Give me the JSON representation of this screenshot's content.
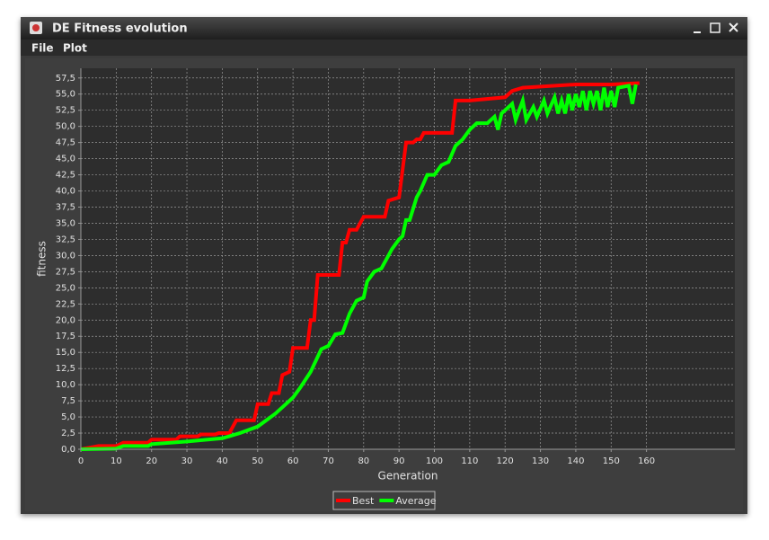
{
  "window": {
    "title": "DE Fitness evolution",
    "menu": [
      "File",
      "Plot"
    ]
  },
  "chart_data": {
    "type": "line",
    "x_label": "Generation",
    "y_label": "fitness",
    "xlim": [
      0,
      185
    ],
    "xticks": [
      0,
      10,
      20,
      30,
      40,
      50,
      60,
      70,
      80,
      90,
      100,
      110,
      120,
      130,
      140,
      150,
      160
    ],
    "ylim": [
      0,
      59
    ],
    "yticks": [
      {
        "value": 0,
        "label": "0,0"
      },
      {
        "value": 2.5,
        "label": "2,5"
      },
      {
        "value": 5,
        "label": "5,0"
      },
      {
        "value": 7.5,
        "label": "7,5"
      },
      {
        "value": 10,
        "label": "10,0"
      },
      {
        "value": 12.5,
        "label": "12,5"
      },
      {
        "value": 15,
        "label": "15,0"
      },
      {
        "value": 17.5,
        "label": "17,5"
      },
      {
        "value": 20,
        "label": "20,0"
      },
      {
        "value": 22.5,
        "label": "22,5"
      },
      {
        "value": 25,
        "label": "25,0"
      },
      {
        "value": 27.5,
        "label": "27,5"
      },
      {
        "value": 30,
        "label": "30,0"
      },
      {
        "value": 32.5,
        "label": "32,5"
      },
      {
        "value": 35,
        "label": "35,0"
      },
      {
        "value": 37.5,
        "label": "37,5"
      },
      {
        "value": 40,
        "label": "40,0"
      },
      {
        "value": 42.5,
        "label": "42,5"
      },
      {
        "value": 45,
        "label": "45,0"
      },
      {
        "value": 47.5,
        "label": "47,5"
      },
      {
        "value": 50,
        "label": "50,0"
      },
      {
        "value": 52.5,
        "label": "52,5"
      },
      {
        "value": 55,
        "label": "55,0"
      },
      {
        "value": 57.5,
        "label": "57,5"
      }
    ],
    "grid": true,
    "legend": "bottom",
    "series": [
      {
        "name": "Best",
        "color": "#ff0000",
        "x": [
          0,
          5,
          10,
          12,
          19,
          20,
          27,
          28,
          33,
          34,
          38,
          39,
          42,
          44,
          49,
          50,
          53,
          54,
          56,
          57,
          59,
          60,
          64,
          65,
          66,
          67,
          73,
          74,
          75,
          76,
          78,
          80,
          86,
          87,
          90,
          92,
          94,
          95,
          96,
          97,
          105,
          106,
          110,
          120,
          122,
          125,
          140,
          150,
          158
        ],
        "values": [
          0,
          0.5,
          0.5,
          1,
          1,
          1.5,
          1.5,
          2,
          2,
          2.3,
          2.3,
          2.5,
          2.5,
          4.5,
          4.5,
          7,
          7,
          8.7,
          8.7,
          11.5,
          12,
          15.7,
          15.7,
          20,
          20,
          27,
          27,
          32,
          32,
          34,
          34,
          36,
          36,
          38.5,
          39,
          47.5,
          47.5,
          48,
          48,
          49,
          49,
          54,
          54,
          54.5,
          55.5,
          56,
          56.5,
          56.5,
          56.7
        ]
      },
      {
        "name": "Average",
        "color": "#00ff00",
        "x": [
          0,
          10,
          12,
          19,
          20,
          30,
          40,
          45,
          50,
          55,
          57,
          60,
          62,
          65,
          68,
          70,
          72,
          74,
          76,
          78,
          80,
          81,
          83,
          85,
          87,
          88,
          90,
          91,
          92,
          93,
          95,
          96,
          98,
          100,
          102,
          104,
          106,
          108,
          110,
          112,
          115,
          117,
          118,
          119,
          122,
          123,
          125,
          126,
          128,
          129,
          131,
          132,
          134,
          135,
          136,
          137,
          138,
          139,
          140,
          141,
          142,
          143,
          144,
          145,
          146,
          147,
          148,
          149,
          150,
          151,
          152,
          155,
          156,
          157
        ],
        "values": [
          0,
          0.1,
          0.5,
          0.5,
          0.8,
          1.2,
          1.7,
          2.5,
          3.5,
          5.5,
          6.5,
          8,
          9.5,
          12,
          15.5,
          16,
          17.8,
          18,
          21,
          23,
          23.5,
          26,
          27.5,
          28,
          30,
          31,
          32.5,
          33,
          35.5,
          35.5,
          39,
          40,
          42.5,
          42.5,
          44,
          44.5,
          47,
          48,
          49.5,
          50.5,
          50.5,
          51.5,
          49.5,
          52,
          53.5,
          51,
          54,
          51,
          53,
          51.5,
          54,
          52,
          54.5,
          52,
          54,
          52,
          55,
          52.5,
          55,
          53,
          55.5,
          52.5,
          55.5,
          53.5,
          55.5,
          52.5,
          56,
          53,
          55.5,
          53,
          56,
          56.3,
          53.5,
          56.5
        ]
      }
    ]
  }
}
